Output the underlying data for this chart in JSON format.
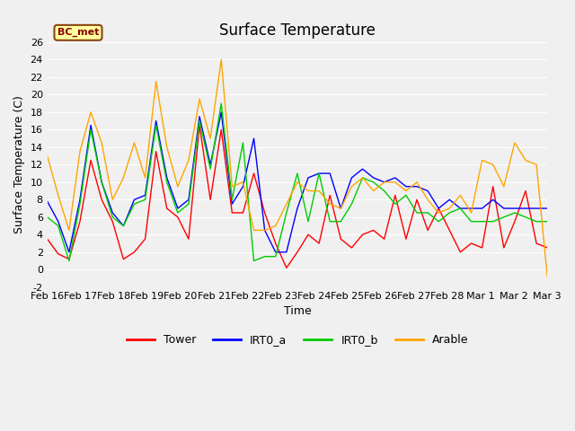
{
  "title": "Surface Temperature",
  "ylabel": "Surface Temperature (C)",
  "xlabel": "Time",
  "annotation": "BC_met",
  "ylim": [
    -2,
    26
  ],
  "xtick_labels": [
    "Feb 16",
    "Feb 17",
    "Feb 18",
    "Feb 19",
    "Feb 20",
    "Feb 21",
    "Feb 22",
    "Feb 23",
    "Feb 24",
    "Feb 25",
    "Feb 26",
    "Feb 27",
    "Feb 28",
    "Mar 1",
    "Mar 2",
    "Mar 3"
  ],
  "ytick_values": [
    -2,
    0,
    2,
    4,
    6,
    8,
    10,
    12,
    14,
    16,
    18,
    20,
    22,
    24,
    26
  ],
  "series": {
    "Tower": {
      "color": "#FF0000",
      "values": [
        3.5,
        1.8,
        1.2,
        5.5,
        12.5,
        8.0,
        5.5,
        1.2,
        2.0,
        3.5,
        13.5,
        7.0,
        6.0,
        3.5,
        16.5,
        8.0,
        16.0,
        6.5,
        6.5,
        11.0,
        6.5,
        3.0,
        0.2,
        2.0,
        4.0,
        3.0,
        8.5,
        3.5,
        2.5,
        4.0,
        4.5,
        3.5,
        8.5,
        3.5,
        8.0,
        4.5,
        7.0,
        4.5,
        2.0,
        3.0,
        2.5,
        9.5,
        2.5,
        5.5,
        9.0,
        3.0,
        2.5
      ]
    },
    "IRT0_a": {
      "color": "#0000FF",
      "values": [
        7.8,
        5.5,
        2.0,
        8.0,
        16.5,
        10.0,
        6.5,
        5.0,
        8.0,
        8.5,
        17.0,
        10.5,
        7.0,
        8.0,
        17.5,
        12.0,
        18.0,
        7.5,
        9.5,
        15.0,
        4.5,
        2.0,
        2.0,
        7.0,
        10.5,
        11.0,
        11.0,
        7.0,
        10.5,
        11.5,
        10.5,
        10.0,
        10.5,
        9.5,
        9.5,
        9.0,
        7.0,
        8.0,
        7.0,
        7.0,
        7.0,
        8.0,
        7.0,
        7.0,
        7.0,
        7.0,
        7.0
      ]
    },
    "IRT0_b": {
      "color": "#00CC00",
      "values": [
        6.0,
        5.0,
        1.0,
        7.5,
        16.0,
        10.0,
        6.0,
        5.0,
        7.5,
        8.0,
        16.5,
        10.0,
        6.5,
        7.5,
        17.0,
        11.5,
        19.0,
        8.0,
        14.5,
        1.0,
        1.5,
        1.5,
        6.5,
        11.0,
        5.5,
        11.0,
        5.5,
        5.5,
        7.5,
        10.5,
        10.0,
        9.0,
        7.5,
        8.5,
        6.5,
        6.5,
        5.5,
        6.5,
        7.0,
        5.5,
        5.5,
        5.5,
        6.0,
        6.5,
        6.0,
        5.5,
        5.5
      ]
    },
    "Arable": {
      "color": "#FFA500",
      "values": [
        13.0,
        8.5,
        4.5,
        13.5,
        18.0,
        14.5,
        8.0,
        10.5,
        14.5,
        10.5,
        21.5,
        14.0,
        9.5,
        12.5,
        19.5,
        15.0,
        24.0,
        9.5,
        10.0,
        4.5,
        4.5,
        5.0,
        7.5,
        10.0,
        9.0,
        9.0,
        7.5,
        7.0,
        9.5,
        10.5,
        9.0,
        10.0,
        10.0,
        9.0,
        10.0,
        8.0,
        6.5,
        7.0,
        8.5,
        6.5,
        12.5,
        12.0,
        9.5,
        14.5,
        12.5,
        12.0,
        -0.8
      ]
    }
  },
  "bg_color": "#F0F0F0",
  "plot_bg_color": "#F0F0F0",
  "grid_color": "#FFFFFF",
  "title_fontsize": 12,
  "label_fontsize": 9,
  "tick_fontsize": 8,
  "legend_fontsize": 9,
  "figsize": [
    6.4,
    4.8
  ],
  "dpi": 100
}
